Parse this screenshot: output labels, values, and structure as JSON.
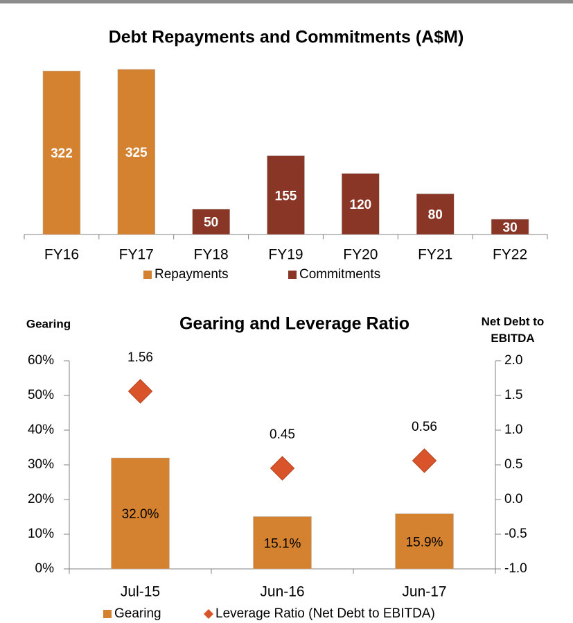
{
  "chart_data": [
    {
      "type": "bar",
      "title": "Debt Repayments and Commitments (A$M)",
      "categories": [
        "FY16",
        "FY17",
        "FY18",
        "FY19",
        "FY20",
        "FY21",
        "FY22"
      ],
      "series": [
        {
          "name": "Repayments",
          "color": "#d4822f",
          "values": [
            322,
            325,
            null,
            null,
            null,
            null,
            null
          ]
        },
        {
          "name": "Commitments",
          "color": "#8a3626",
          "values": [
            null,
            null,
            50,
            155,
            120,
            80,
            30
          ]
        }
      ]
    },
    {
      "type": "combo",
      "title": "Gearing and Leverage Ratio",
      "ylabel": "Gearing",
      "y2label": "Net Debt to EBITDA",
      "categories": [
        "Jul-15",
        "Jun-16",
        "Jun-17"
      ],
      "series": [
        {
          "name": "Gearing",
          "color": "#d4822f",
          "values": [
            32.0,
            15.1,
            15.9
          ],
          "value_labels": [
            "32.0%",
            "15.1%",
            "15.9%"
          ]
        },
        {
          "name": "Leverage Ratio (Net Debt to EBITDA)",
          "color": "#d9542a",
          "axis": "y2",
          "marker": "diamond",
          "values": [
            1.56,
            0.45,
            0.56
          ]
        }
      ],
      "ylim": [
        0,
        60
      ],
      "yticks": [
        {
          "value": 0,
          "label": "0%"
        },
        {
          "value": 10,
          "label": "10%"
        },
        {
          "value": 20,
          "label": "20%"
        },
        {
          "value": 30,
          "label": "30%"
        },
        {
          "value": 40,
          "label": "40%"
        },
        {
          "value": 50,
          "label": "50%"
        },
        {
          "value": 60,
          "label": "60%"
        }
      ],
      "y2lim": [
        -1,
        2
      ],
      "y2ticks": [
        {
          "value": -1,
          "label": "-1.0"
        },
        -0.5,
        {
          "value": 0,
          "label": "0.0"
        },
        0.5,
        {
          "value": 1,
          "label": "1.0"
        },
        1.5,
        {
          "value": 2,
          "label": "2.0"
        }
      ]
    }
  ]
}
